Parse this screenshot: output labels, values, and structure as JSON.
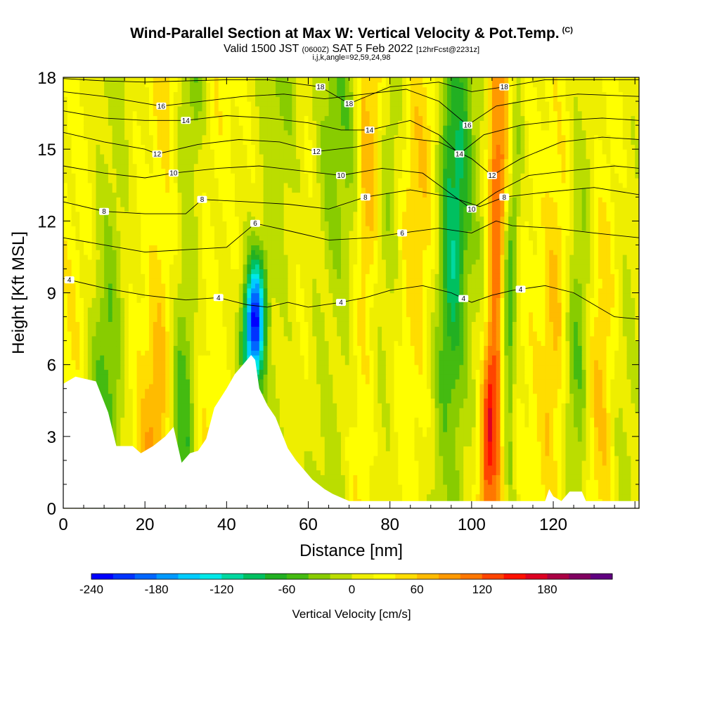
{
  "header": {
    "title": "Wind-Parallel Section at Max W: Vertical Velocity & Pot.Temp.",
    "copyright": "(C)",
    "valid_prefix": "Valid 1500 JST",
    "valid_utc": "(0600Z)",
    "valid_date": "SAT 5 Feb 2022",
    "forecast": "[12hrFcst@2231z]",
    "indices": "i,j,k,angle=92,59,24,98"
  },
  "chart_data": {
    "type": "heatmap",
    "title": "Wind-Parallel Section at Max W: Vertical Velocity & Pot.Temp.",
    "xlabel": "Distance [nm]",
    "ylabel": "Height [Kft MSL]",
    "xlim": [
      0,
      141
    ],
    "ylim": [
      0,
      18
    ],
    "xticks": [
      0,
      20,
      40,
      60,
      80,
      100,
      120
    ],
    "yticks": [
      0,
      3,
      6,
      9,
      12,
      15,
      18
    ],
    "colorbar": {
      "label": "Vertical Velocity [cm/s]",
      "min": -240,
      "max": 220,
      "step": 20,
      "tick_labels": [
        "-240",
        "-180",
        "-120",
        "-60",
        "0",
        "60",
        "120",
        "180"
      ],
      "tick_values": [
        -240,
        -180,
        -120,
        -60,
        0,
        60,
        120,
        180
      ],
      "colors": [
        "#0000ff",
        "#0033ff",
        "#0066ff",
        "#0099ff",
        "#00ccff",
        "#00e8e8",
        "#00d8a0",
        "#00c060",
        "#22b022",
        "#44bb11",
        "#88cc00",
        "#bbdd00",
        "#eeee00",
        "#ffff00",
        "#ffdd00",
        "#ffbb00",
        "#ff9900",
        "#ff7700",
        "#ff4400",
        "#ff1100",
        "#dd0022",
        "#aa0044",
        "#800060",
        "#600080"
      ]
    },
    "velocity_features": [
      {
        "x": 2,
        "w": 7,
        "peak": 25
      },
      {
        "x": 11,
        "w": 3.5,
        "peak": -75
      },
      {
        "x": 18,
        "w": 4,
        "peak": 15
      },
      {
        "x": 24,
        "w": 3,
        "peak": 65
      },
      {
        "x": 30,
        "w": 2.5,
        "peak": -90
      },
      {
        "x": 36,
        "w": 4,
        "peak": 30
      },
      {
        "x": 47,
        "w": 2.2,
        "peak": -235
      },
      {
        "x": 53,
        "w": 4,
        "peak": -45
      },
      {
        "x": 58,
        "w": 3.5,
        "peak": 25
      },
      {
        "x": 66,
        "w": 5,
        "peak": -50
      },
      {
        "x": 74,
        "w": 2.2,
        "peak": 70
      },
      {
        "x": 79,
        "w": 3,
        "peak": -35
      },
      {
        "x": 86,
        "w": 4,
        "peak": 45
      },
      {
        "x": 95,
        "w": 3,
        "peak": -110
      },
      {
        "x": 101,
        "w": 3,
        "peak": -20
      },
      {
        "x": 106,
        "w": 2,
        "peak": 150
      },
      {
        "x": 109,
        "w": 1.6,
        "peak": -80
      },
      {
        "x": 114,
        "w": 3,
        "peak": 15
      },
      {
        "x": 121,
        "w": 3,
        "peak": 55
      },
      {
        "x": 126,
        "w": 3,
        "peak": -60
      },
      {
        "x": 132,
        "w": 3,
        "peak": 50
      },
      {
        "x": 138,
        "w": 3,
        "peak": -20
      }
    ],
    "terrain_kft": [
      [
        0,
        5.2
      ],
      [
        3,
        5.5
      ],
      [
        8,
        5.3
      ],
      [
        11,
        4.0
      ],
      [
        13,
        2.6
      ],
      [
        17,
        2.6
      ],
      [
        19,
        2.3
      ],
      [
        22,
        2.6
      ],
      [
        25,
        3.0
      ],
      [
        27,
        3.4
      ],
      [
        29,
        1.9
      ],
      [
        31,
        2.3
      ],
      [
        33,
        2.4
      ],
      [
        35,
        2.9
      ],
      [
        37,
        4.2
      ],
      [
        40,
        5.0
      ],
      [
        42,
        5.6
      ],
      [
        44,
        6.0
      ],
      [
        46,
        6.4
      ],
      [
        47,
        6.2
      ],
      [
        48,
        5.0
      ],
      [
        50,
        4.3
      ],
      [
        52,
        3.8
      ],
      [
        55,
        2.5
      ],
      [
        57,
        2.0
      ],
      [
        59,
        1.6
      ],
      [
        61,
        1.2
      ],
      [
        64,
        0.8
      ],
      [
        66,
        0.6
      ],
      [
        70,
        0.3
      ],
      [
        100,
        0.3
      ],
      [
        118,
        0.3
      ],
      [
        119,
        0.8
      ],
      [
        120,
        0.5
      ],
      [
        122,
        0.3
      ],
      [
        124,
        0.7
      ],
      [
        127,
        0.7
      ],
      [
        128,
        0.3
      ],
      [
        141,
        0.3
      ]
    ],
    "isentropes": [
      {
        "label": "4",
        "labels_at": [
          1.5,
          38,
          68,
          98,
          112
        ],
        "points": [
          [
            0,
            9.6
          ],
          [
            10,
            9.2
          ],
          [
            20,
            8.9
          ],
          [
            30,
            8.7
          ],
          [
            38,
            8.8
          ],
          [
            45,
            8.5
          ],
          [
            50,
            8.4
          ],
          [
            55,
            8.6
          ],
          [
            60,
            8.4
          ],
          [
            68,
            8.6
          ],
          [
            74,
            8.8
          ],
          [
            80,
            9.1
          ],
          [
            88,
            9.3
          ],
          [
            95,
            9.0
          ],
          [
            100,
            8.6
          ],
          [
            105,
            8.9
          ],
          [
            110,
            9.1
          ],
          [
            118,
            9.3
          ],
          [
            125,
            9.0
          ],
          [
            135,
            8.0
          ],
          [
            141,
            7.9
          ]
        ]
      },
      {
        "label": "6",
        "labels_at": [
          47,
          83
        ],
        "points": [
          [
            0,
            11.3
          ],
          [
            10,
            11.0
          ],
          [
            20,
            10.7
          ],
          [
            30,
            10.8
          ],
          [
            40,
            10.9
          ],
          [
            47,
            11.9
          ],
          [
            55,
            11.6
          ],
          [
            65,
            11.2
          ],
          [
            75,
            11.3
          ],
          [
            83,
            11.5
          ],
          [
            92,
            11.7
          ],
          [
            100,
            11.5
          ],
          [
            106,
            12.0
          ],
          [
            110,
            11.8
          ],
          [
            120,
            11.7
          ],
          [
            130,
            11.5
          ],
          [
            141,
            11.3
          ]
        ]
      },
      {
        "label": "8",
        "labels_at": [
          10,
          34,
          74,
          108
        ],
        "points": [
          [
            0,
            12.8
          ],
          [
            10,
            12.4
          ],
          [
            20,
            12.3
          ],
          [
            30,
            12.3
          ],
          [
            34,
            12.9
          ],
          [
            45,
            12.8
          ],
          [
            55,
            12.7
          ],
          [
            65,
            12.5
          ],
          [
            74,
            13.0
          ],
          [
            85,
            13.3
          ],
          [
            95,
            13.0
          ],
          [
            102,
            12.6
          ],
          [
            108,
            13.0
          ],
          [
            118,
            13.2
          ],
          [
            130,
            13.4
          ],
          [
            141,
            13.1
          ]
        ]
      },
      {
        "label": "10",
        "labels_at": [
          27,
          68,
          100
        ],
        "points": [
          [
            0,
            14.3
          ],
          [
            10,
            14.0
          ],
          [
            20,
            13.8
          ],
          [
            27,
            14.0
          ],
          [
            38,
            14.2
          ],
          [
            48,
            14.3
          ],
          [
            58,
            14.1
          ],
          [
            68,
            13.9
          ],
          [
            78,
            14.2
          ],
          [
            88,
            14.0
          ],
          [
            100,
            12.5
          ],
          [
            106,
            13.2
          ],
          [
            114,
            13.9
          ],
          [
            124,
            14.1
          ],
          [
            135,
            14.3
          ],
          [
            141,
            14.2
          ]
        ]
      },
      {
        "label": "12",
        "labels_at": [
          23,
          62,
          105
        ],
        "points": [
          [
            0,
            15.7
          ],
          [
            10,
            15.3
          ],
          [
            20,
            15.0
          ],
          [
            23,
            14.8
          ],
          [
            33,
            15.2
          ],
          [
            43,
            15.4
          ],
          [
            53,
            15.3
          ],
          [
            62,
            14.9
          ],
          [
            72,
            15.1
          ],
          [
            82,
            15.5
          ],
          [
            92,
            15.3
          ],
          [
            100,
            14.6
          ],
          [
            105,
            13.9
          ],
          [
            112,
            14.6
          ],
          [
            122,
            15.3
          ],
          [
            132,
            15.5
          ],
          [
            141,
            15.4
          ]
        ]
      },
      {
        "label": "14",
        "labels_at": [
          30,
          75,
          97
        ],
        "points": [
          [
            0,
            16.6
          ],
          [
            10,
            16.3
          ],
          [
            20,
            16.2
          ],
          [
            30,
            16.2
          ],
          [
            40,
            16.4
          ],
          [
            50,
            16.3
          ],
          [
            60,
            16.1
          ],
          [
            68,
            15.8
          ],
          [
            75,
            15.8
          ],
          [
            85,
            16.2
          ],
          [
            92,
            15.6
          ],
          [
            97,
            14.8
          ],
          [
            103,
            15.6
          ],
          [
            112,
            16.0
          ],
          [
            122,
            16.2
          ],
          [
            132,
            16.3
          ],
          [
            141,
            16.2
          ]
        ]
      },
      {
        "label": "16",
        "labels_at": [
          24,
          99
        ],
        "points": [
          [
            0,
            17.4
          ],
          [
            10,
            17.2
          ],
          [
            24,
            16.8
          ],
          [
            34,
            17.0
          ],
          [
            44,
            17.2
          ],
          [
            54,
            17.3
          ],
          [
            64,
            17.1
          ],
          [
            74,
            17.3
          ],
          [
            84,
            17.5
          ],
          [
            92,
            17.0
          ],
          [
            99,
            16.0
          ],
          [
            106,
            16.8
          ],
          [
            116,
            17.1
          ],
          [
            126,
            17.3
          ],
          [
            141,
            17.2
          ]
        ]
      },
      {
        "label": "18",
        "labels_at": [
          63,
          70,
          108
        ],
        "points": [
          [
            0,
            17.95
          ],
          [
            10,
            17.85
          ],
          [
            20,
            17.8
          ],
          [
            30,
            17.85
          ],
          [
            40,
            17.9
          ],
          [
            50,
            17.9
          ],
          [
            63,
            17.6
          ],
          [
            70,
            16.9
          ],
          [
            80,
            17.6
          ],
          [
            92,
            17.8
          ],
          [
            100,
            17.4
          ],
          [
            108,
            17.6
          ],
          [
            118,
            17.9
          ],
          [
            130,
            17.9
          ],
          [
            141,
            17.9
          ]
        ]
      }
    ]
  },
  "colorbar_label": "Vertical Velocity [cm/s]"
}
